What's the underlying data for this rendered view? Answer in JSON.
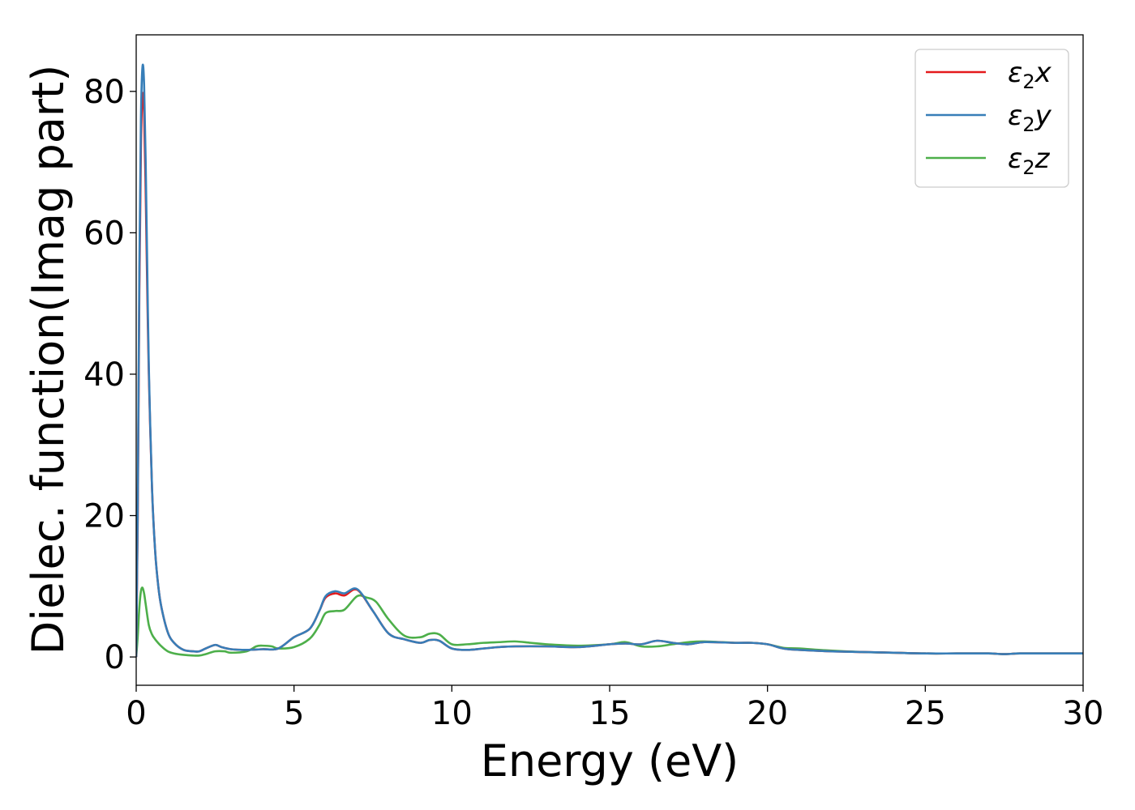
{
  "chart_data": {
    "type": "line",
    "xlabel": "Energy (eV)",
    "ylabel": "Dielec. function(Imag part)",
    "xlim": [
      0,
      30
    ],
    "ylim": [
      -4,
      88
    ],
    "xticks": [
      0,
      5,
      10,
      15,
      20,
      25,
      30
    ],
    "yticks": [
      0,
      20,
      40,
      60,
      80
    ],
    "grid": false,
    "legend_position": "top-right",
    "series": [
      {
        "name": "ε2x",
        "legend_base": "ε",
        "legend_sub": "2",
        "legend_var": "x",
        "color": "#e41a1c",
        "x": [
          0,
          0.05,
          0.1,
          0.15,
          0.2,
          0.25,
          0.3,
          0.35,
          0.4,
          0.5,
          0.6,
          0.7,
          0.8,
          1.0,
          1.2,
          1.5,
          1.8,
          2.0,
          2.2,
          2.5,
          2.7,
          3.0,
          3.5,
          4.0,
          4.5,
          5.0,
          5.5,
          5.8,
          6.0,
          6.3,
          6.6,
          7.0,
          7.5,
          8.0,
          8.5,
          9.0,
          9.3,
          9.6,
          10.0,
          10.5,
          11.0,
          11.5,
          12.0,
          13.0,
          14.0,
          15.0,
          15.5,
          16.0,
          16.5,
          17.0,
          17.5,
          18.0,
          19.0,
          19.5,
          20.0,
          20.5,
          21.0,
          22.0,
          23.0,
          24.0,
          25.0,
          26.0,
          27.0,
          27.5,
          28.0,
          29.0,
          30.0
        ],
        "y": [
          0,
          20,
          52,
          72,
          79.5,
          77,
          66,
          52,
          40,
          24,
          15,
          10,
          7,
          3.5,
          2,
          1,
          0.8,
          0.8,
          1.2,
          1.7,
          1.4,
          1.1,
          1.0,
          1.1,
          1.2,
          2.8,
          4.0,
          6.5,
          8.4,
          9.0,
          8.7,
          9.5,
          6.5,
          3.3,
          2.5,
          2.0,
          2.4,
          2.3,
          1.2,
          1.0,
          1.2,
          1.4,
          1.5,
          1.5,
          1.4,
          1.8,
          1.9,
          1.8,
          2.3,
          2.0,
          1.8,
          2.1,
          2.0,
          2.0,
          1.8,
          1.2,
          1.0,
          0.8,
          0.7,
          0.6,
          0.5,
          0.5,
          0.5,
          0.4,
          0.5,
          0.5,
          0.5
        ]
      },
      {
        "name": "ε2y",
        "legend_base": "ε",
        "legend_sub": "2",
        "legend_var": "y",
        "color": "#377eb8",
        "x": [
          0,
          0.05,
          0.1,
          0.15,
          0.2,
          0.25,
          0.3,
          0.35,
          0.4,
          0.5,
          0.6,
          0.7,
          0.8,
          1.0,
          1.2,
          1.5,
          1.8,
          2.0,
          2.2,
          2.5,
          2.7,
          3.0,
          3.5,
          4.0,
          4.5,
          5.0,
          5.5,
          5.8,
          6.0,
          6.3,
          6.6,
          7.0,
          7.5,
          8.0,
          8.5,
          9.0,
          9.3,
          9.6,
          10.0,
          10.5,
          11.0,
          11.5,
          12.0,
          13.0,
          14.0,
          15.0,
          15.5,
          16.0,
          16.5,
          17.0,
          17.5,
          18.0,
          19.0,
          19.5,
          20.0,
          20.5,
          21.0,
          22.0,
          23.0,
          24.0,
          25.0,
          26.0,
          27.0,
          27.5,
          28.0,
          29.0,
          30.0
        ],
        "y": [
          0,
          22,
          55,
          76,
          83.5,
          81,
          70,
          55,
          41,
          24,
          15,
          10,
          7,
          3.5,
          2,
          1,
          0.8,
          0.8,
          1.2,
          1.7,
          1.4,
          1.1,
          1.0,
          1.1,
          1.2,
          2.8,
          4.0,
          6.5,
          8.6,
          9.3,
          9.0,
          9.6,
          6.5,
          3.3,
          2.5,
          2.0,
          2.4,
          2.3,
          1.2,
          1.0,
          1.2,
          1.4,
          1.5,
          1.5,
          1.4,
          1.8,
          1.9,
          1.8,
          2.3,
          2.0,
          1.8,
          2.1,
          2.0,
          2.0,
          1.8,
          1.2,
          1.0,
          0.8,
          0.7,
          0.6,
          0.5,
          0.5,
          0.5,
          0.4,
          0.5,
          0.5,
          0.5
        ]
      },
      {
        "name": "ε2z",
        "legend_base": "ε",
        "legend_sub": "2",
        "legend_var": "z",
        "color": "#4daf4a",
        "x": [
          0,
          0.05,
          0.1,
          0.15,
          0.2,
          0.25,
          0.3,
          0.4,
          0.5,
          0.6,
          0.8,
          1.0,
          1.2,
          1.5,
          1.8,
          2.0,
          2.2,
          2.5,
          2.8,
          3.0,
          3.5,
          3.8,
          4.0,
          4.3,
          4.5,
          5.0,
          5.5,
          5.8,
          6.0,
          6.3,
          6.6,
          7.0,
          7.3,
          7.6,
          8.0,
          8.5,
          9.0,
          9.3,
          9.6,
          10.0,
          10.5,
          11.0,
          11.5,
          12.0,
          12.5,
          13.0,
          14.0,
          15.0,
          15.5,
          16.0,
          16.5,
          17.0,
          17.5,
          18.0,
          19.0,
          19.5,
          20.0,
          20.5,
          21.0,
          22.0,
          23.0,
          24.0,
          25.0,
          26.0,
          27.0,
          27.5,
          28.0,
          29.0,
          30.0
        ],
        "y": [
          0,
          3,
          7,
          9.3,
          9.8,
          9.0,
          7.5,
          4.5,
          3.2,
          2.5,
          1.5,
          0.8,
          0.5,
          0.3,
          0.2,
          0.2,
          0.4,
          0.8,
          0.8,
          0.6,
          0.8,
          1.5,
          1.6,
          1.5,
          1.2,
          1.4,
          2.6,
          4.5,
          6.2,
          6.5,
          6.7,
          8.6,
          8.4,
          7.8,
          5.3,
          3.0,
          2.8,
          3.3,
          3.2,
          1.8,
          1.8,
          2.0,
          2.1,
          2.2,
          2.0,
          1.8,
          1.6,
          1.8,
          2.1,
          1.5,
          1.5,
          1.8,
          2.1,
          2.2,
          2.0,
          2.0,
          1.8,
          1.3,
          1.2,
          0.9,
          0.7,
          0.6,
          0.5,
          0.5,
          0.5,
          0.4,
          0.5,
          0.5,
          0.5
        ]
      }
    ]
  }
}
